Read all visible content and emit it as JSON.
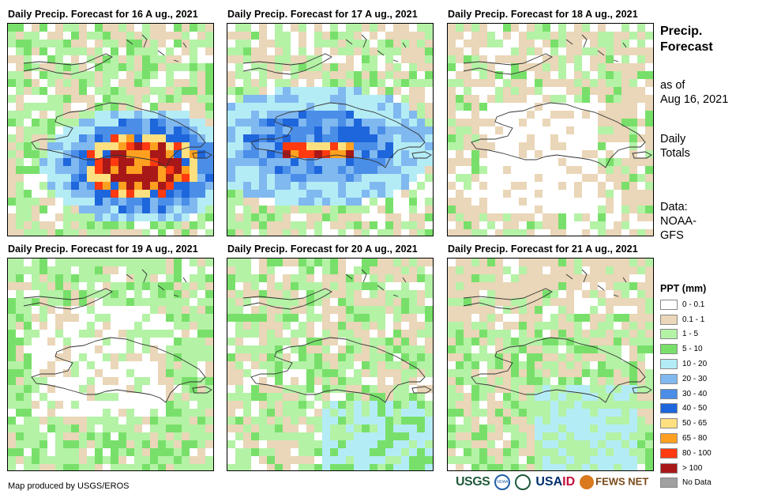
{
  "panels": [
    {
      "title": "Daily  Precip.  Forecast  for 16 A ug., 2021"
    },
    {
      "title": "Daily  Precip.  Forecast  for 17 A ug., 2021"
    },
    {
      "title": "Daily  Precip.  Forecast  for 18 A ug., 2021"
    },
    {
      "title": "Daily  Precip.  Forecast  for 19 A ug., 2021"
    },
    {
      "title": "Daily  Precip.  Forecast  for 20 A ug., 2021"
    },
    {
      "title": "Daily  Precip.  Forecast  for 21 A ug., 2021"
    }
  ],
  "side": {
    "title_line1": "Precip.",
    "title_line2": "Forecast",
    "asof_line1": "as of",
    "asof_line2": "Aug 16, 2021",
    "totals_line1": "Daily",
    "totals_line2": "Totals",
    "data_line1": "Data:",
    "data_line2": "NOAA-",
    "data_line3": "GFS"
  },
  "legend": {
    "title": "PPT (mm)",
    "items": [
      {
        "label": "0 - 0.1",
        "color": "#ffffff"
      },
      {
        "label": "0.1 - 1",
        "color": "#ead6b8"
      },
      {
        "label": "1 - 5",
        "color": "#b4f2a6"
      },
      {
        "label": "5 - 10",
        "color": "#78e06a"
      },
      {
        "label": "10 - 20",
        "color": "#b4ecf6"
      },
      {
        "label": "20 - 30",
        "color": "#80b8f0"
      },
      {
        "label": "30 - 40",
        "color": "#4a8ee8"
      },
      {
        "label": "40 - 50",
        "color": "#1e66dc"
      },
      {
        "label": "50 - 65",
        "color": "#ffe080"
      },
      {
        "label": "65 - 80",
        "color": "#ffa020"
      },
      {
        "label": "80 - 100",
        "color": "#ff3a10"
      },
      {
        "label": "> 100",
        "color": "#a81818"
      },
      {
        "label": "No Data",
        "color": "#a0a0a0"
      }
    ]
  },
  "credit": "Map produced by USGS/EROS",
  "logos": {
    "usgs": "USGS",
    "noaa": "NOAA",
    "usaid_a": "USA",
    "usaid_b": "ID",
    "fews": "FEWS NET"
  }
}
